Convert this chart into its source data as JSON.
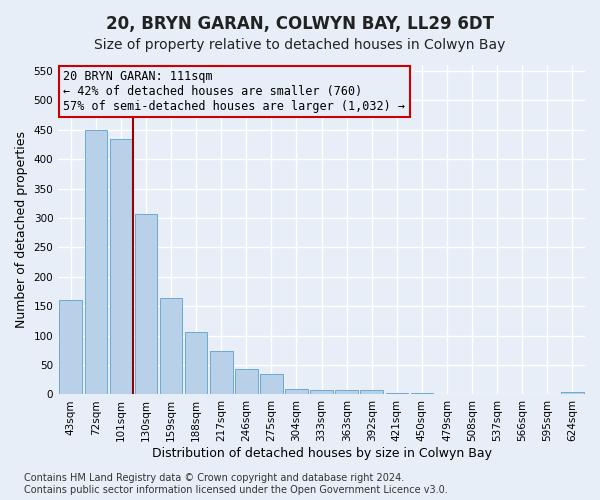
{
  "title": "20, BRYN GARAN, COLWYN BAY, LL29 6DT",
  "subtitle": "Size of property relative to detached houses in Colwyn Bay",
  "xlabel": "Distribution of detached houses by size in Colwyn Bay",
  "ylabel": "Number of detached properties",
  "categories": [
    "43sqm",
    "72sqm",
    "101sqm",
    "130sqm",
    "159sqm",
    "188sqm",
    "217sqm",
    "246sqm",
    "275sqm",
    "304sqm",
    "333sqm",
    "363sqm",
    "392sqm",
    "421sqm",
    "450sqm",
    "479sqm",
    "508sqm",
    "537sqm",
    "566sqm",
    "595sqm",
    "624sqm"
  ],
  "values": [
    161,
    450,
    435,
    306,
    164,
    106,
    74,
    44,
    34,
    10,
    8,
    7,
    7,
    3,
    2,
    1,
    1,
    1,
    1,
    0,
    4
  ],
  "bar_color": "#b8d0e8",
  "bar_edgecolor": "#6aaad4",
  "vline_x": 2.5,
  "vline_color": "#990000",
  "ylim": [
    0,
    560
  ],
  "yticks": [
    0,
    50,
    100,
    150,
    200,
    250,
    300,
    350,
    400,
    450,
    500,
    550
  ],
  "annotation_text": "20 BRYN GARAN: 111sqm\n← 42% of detached houses are smaller (760)\n57% of semi-detached houses are larger (1,032) →",
  "annotation_box_edgecolor": "#cc0000",
  "footnote": "Contains HM Land Registry data © Crown copyright and database right 2024.\nContains public sector information licensed under the Open Government Licence v3.0.",
  "bg_color": "#e8eef8",
  "grid_color": "#ffffff",
  "title_fontsize": 12,
  "subtitle_fontsize": 10,
  "axis_label_fontsize": 9,
  "tick_fontsize": 7.5,
  "annotation_fontsize": 8.5,
  "footnote_fontsize": 7
}
